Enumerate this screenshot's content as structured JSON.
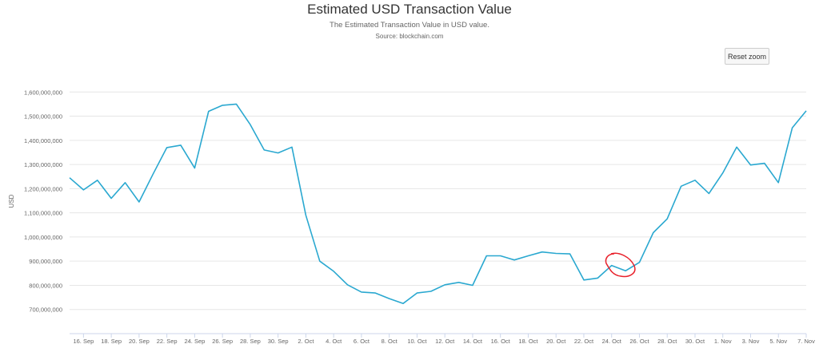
{
  "chart_data": {
    "type": "line",
    "title": "Estimated USD Transaction Value",
    "subtitle": "The Estimated Transaction Value in USD value.",
    "source": "Source: blockchain.com",
    "xlabel": "",
    "ylabel": "USD",
    "reset_zoom_label": "Reset zoom",
    "grid": true,
    "legend": "none",
    "color": "#2aa8d0",
    "annotation_color": "#e8202a",
    "ylim": [
      600000000,
      1700000000
    ],
    "y_ticks": [
      700000000,
      800000000,
      900000000,
      1000000000,
      1100000000,
      1200000000,
      1300000000,
      1400000000,
      1500000000,
      1600000000
    ],
    "y_tick_labels": [
      "700,000,000",
      "800,000,000",
      "900,000,000",
      "1,000,000,000",
      "1,100,000,000",
      "1,200,000,000",
      "1,300,000,000",
      "1,400,000,000",
      "1,500,000,000",
      "1,600,000,000"
    ],
    "x_tick_labels": [
      "16. Sep",
      "18. Sep",
      "20. Sep",
      "22. Sep",
      "24. Sep",
      "26. Sep",
      "28. Sep",
      "30. Sep",
      "2. Oct",
      "4. Oct",
      "6. Oct",
      "8. Oct",
      "10. Oct",
      "12. Oct",
      "14. Oct",
      "16. Oct",
      "18. Oct",
      "20. Oct",
      "22. Oct",
      "24. Oct",
      "26. Oct",
      "28. Oct",
      "30. Oct",
      "1. Nov",
      "3. Nov",
      "5. Nov",
      "7. Nov"
    ],
    "values": [
      1245000000,
      1195000000,
      1235000000,
      1160000000,
      1225000000,
      1145000000,
      1260000000,
      1370000000,
      1380000000,
      1285000000,
      1520000000,
      1545000000,
      1550000000,
      1465000000,
      1360000000,
      1348000000,
      1372000000,
      1090000000,
      900000000,
      858000000,
      802000000,
      772000000,
      768000000,
      745000000,
      725000000,
      768000000,
      775000000,
      802000000,
      812000000,
      800000000,
      922000000,
      922000000,
      905000000,
      922000000,
      938000000,
      932000000,
      930000000,
      822000000,
      830000000,
      882000000,
      860000000,
      895000000,
      1018000000,
      1075000000,
      1210000000,
      1235000000,
      1180000000,
      1265000000,
      1372000000,
      1298000000,
      1305000000,
      1225000000,
      1452000000,
      1522000000
    ]
  }
}
